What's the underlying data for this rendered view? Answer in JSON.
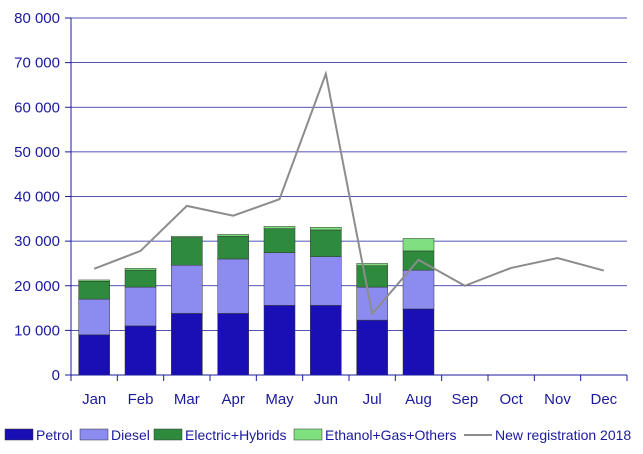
{
  "chart_data": {
    "type": "bar",
    "stacked": true,
    "title": "",
    "xlabel": "",
    "ylabel": "",
    "ylim": [
      0,
      80000
    ],
    "yticks": [
      0,
      10000,
      20000,
      30000,
      40000,
      50000,
      60000,
      70000,
      80000
    ],
    "ytick_labels": [
      "0",
      "10 000",
      "20 000",
      "30 000",
      "40 000",
      "50 000",
      "60 000",
      "70 000",
      "80 000"
    ],
    "grid": "horizontal",
    "legend_position": "bottom",
    "categories": [
      "Jan",
      "Feb",
      "Mar",
      "Apr",
      "May",
      "Jun",
      "Jul",
      "Aug",
      "Sep",
      "Oct",
      "Nov",
      "Dec"
    ],
    "series": [
      {
        "name": "Petrol",
        "kind": "bar",
        "color": "#1a0fb4",
        "values": [
          9000,
          11000,
          13800,
          13800,
          15600,
          15600,
          12300,
          14800,
          null,
          null,
          null,
          null
        ]
      },
      {
        "name": "Diesel",
        "kind": "bar",
        "color": "#8c8cf0",
        "values": [
          8000,
          8700,
          10800,
          12200,
          11800,
          10900,
          7400,
          8700,
          null,
          null,
          null,
          null
        ]
      },
      {
        "name": "Electric+Hybrids",
        "kind": "bar",
        "color": "#2e8b3e",
        "values": [
          4000,
          3800,
          6200,
          5100,
          5400,
          6000,
          4800,
          4300,
          null,
          null,
          null,
          null
        ]
      },
      {
        "name": "Ethanol+Gas+Others",
        "kind": "bar",
        "color": "#7ee07e",
        "values": [
          300,
          400,
          300,
          400,
          500,
          600,
          500,
          2800,
          null,
          null,
          null,
          null
        ]
      },
      {
        "name": "New registration 2018",
        "kind": "line",
        "color": "#8c8c8c",
        "values": [
          23800,
          27800,
          37900,
          35700,
          39400,
          67500,
          13700,
          25800,
          20000,
          24000,
          26200,
          23400
        ]
      }
    ]
  },
  "colors": {
    "axis_text": "#1a1a9c",
    "grid": "#1a1a9c",
    "axis": "#1a1a9c",
    "bar_outline": "#333333"
  }
}
